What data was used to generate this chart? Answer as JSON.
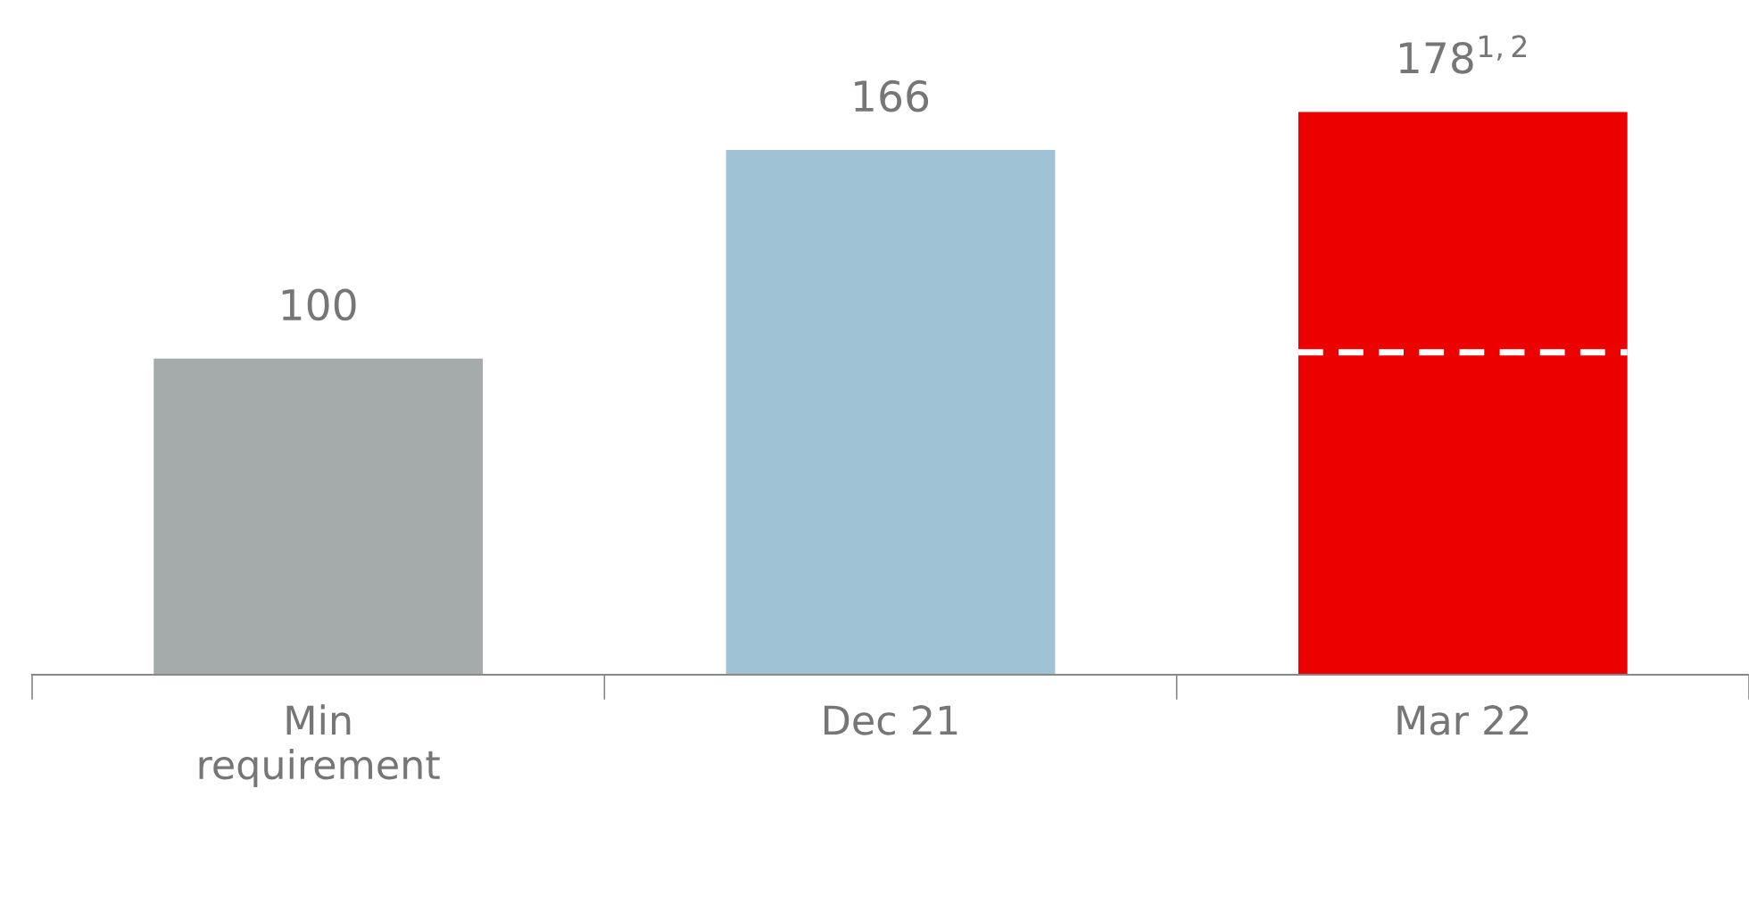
{
  "chart_data": {
    "type": "bar",
    "categories": [
      "Min\nrequirement",
      "Dec 21",
      "Mar 22"
    ],
    "values": [
      100,
      166,
      178
    ],
    "colors": [
      "#a5aaaa",
      "#9fc3d5",
      "#ec0000"
    ],
    "value_labels": [
      "100",
      "166",
      "178$^{1,2}$"
    ],
    "tick_labels": "x",
    "grid": false,
    "ref_lines": [
      {
        "axis": "y",
        "value": 102,
        "color": "#ffffff",
        "line_style": "dashed"
      }
    ]
  }
}
